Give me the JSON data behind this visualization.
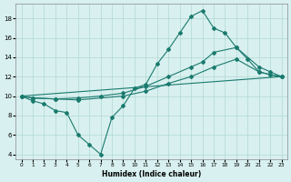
{
  "line1_x": [
    0,
    1,
    2,
    3,
    4,
    5,
    6,
    7,
    8,
    9,
    10,
    11,
    12,
    13,
    14,
    15,
    16,
    17,
    18,
    19,
    20,
    21,
    22,
    23
  ],
  "line1_y": [
    10.0,
    9.5,
    9.2,
    8.5,
    8.3,
    6.0,
    5.0,
    4.0,
    7.8,
    9.0,
    10.8,
    11.2,
    13.3,
    14.8,
    16.5,
    18.2,
    18.8,
    17.0,
    16.5,
    15.0,
    13.8,
    12.5,
    12.2,
    12.0
  ],
  "line2_x": [
    0,
    1,
    3,
    5,
    7,
    9,
    11,
    13,
    15,
    16,
    17,
    19,
    21,
    22,
    23
  ],
  "line2_y": [
    10.0,
    9.8,
    9.7,
    9.8,
    10.0,
    10.3,
    11.0,
    12.0,
    13.0,
    13.5,
    14.5,
    15.0,
    13.0,
    12.5,
    12.0
  ],
  "line3_x": [
    0,
    1,
    3,
    5,
    9,
    11,
    13,
    15,
    17,
    19,
    21,
    22,
    23
  ],
  "line3_y": [
    10.0,
    9.8,
    9.7,
    9.6,
    10.0,
    10.5,
    11.3,
    12.0,
    13.0,
    13.8,
    12.5,
    12.2,
    12.0
  ],
  "line4_x": [
    0,
    23
  ],
  "line4_y": [
    10.0,
    12.0
  ],
  "color": "#1a7a6e",
  "bg_color": "#d8f0ef",
  "grid_color": "#b0d8d5",
  "xlabel": "Humidex (Indice chaleur)",
  "xlim": [
    -0.5,
    23.5
  ],
  "ylim": [
    3.5,
    19.5
  ],
  "yticks": [
    4,
    6,
    8,
    10,
    12,
    14,
    16,
    18
  ],
  "xticks": [
    0,
    1,
    2,
    3,
    4,
    5,
    6,
    7,
    8,
    9,
    10,
    11,
    12,
    13,
    14,
    15,
    16,
    17,
    18,
    19,
    20,
    21,
    22,
    23
  ],
  "marker": "D",
  "markersize": 2.0,
  "linewidth": 0.8
}
